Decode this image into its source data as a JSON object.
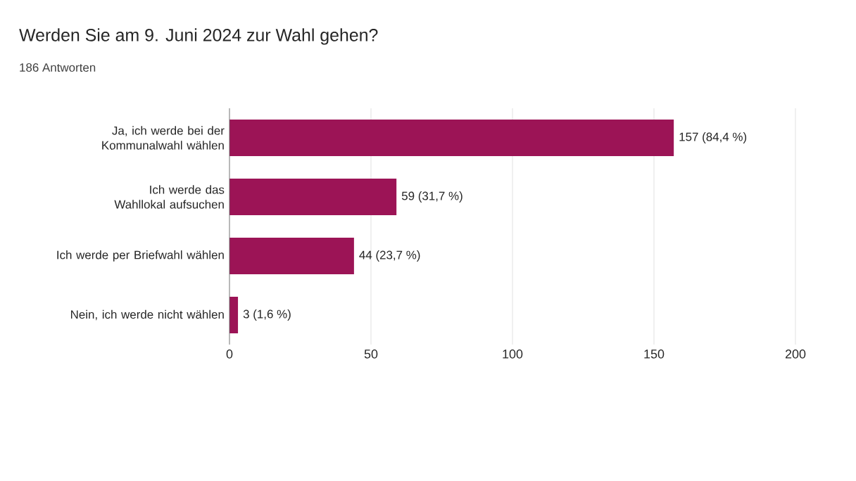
{
  "chart_data": {
    "type": "bar",
    "orientation": "horizontal",
    "title": "Werden Sie am 9. Juni 2024 zur Wahl gehen?",
    "subtitle": "186 Antworten",
    "categories": [
      "Ja, ich werde bei der Kommunalwahl wählen",
      "Ich werde das Wahllokal aufsuchen",
      "Ich werde per Briefwahl wählen",
      "Nein, ich werde nicht wählen"
    ],
    "values": [
      157,
      59,
      44,
      3
    ],
    "value_labels": [
      "157 (84,4 %)",
      "59 (31,7 %)",
      "44 (23,7 %)",
      "3 (1,6 %)"
    ],
    "color": "#9c1456",
    "xlim": [
      0,
      200
    ],
    "xticks": [
      0,
      50,
      100,
      150,
      200
    ],
    "grid": "x"
  }
}
